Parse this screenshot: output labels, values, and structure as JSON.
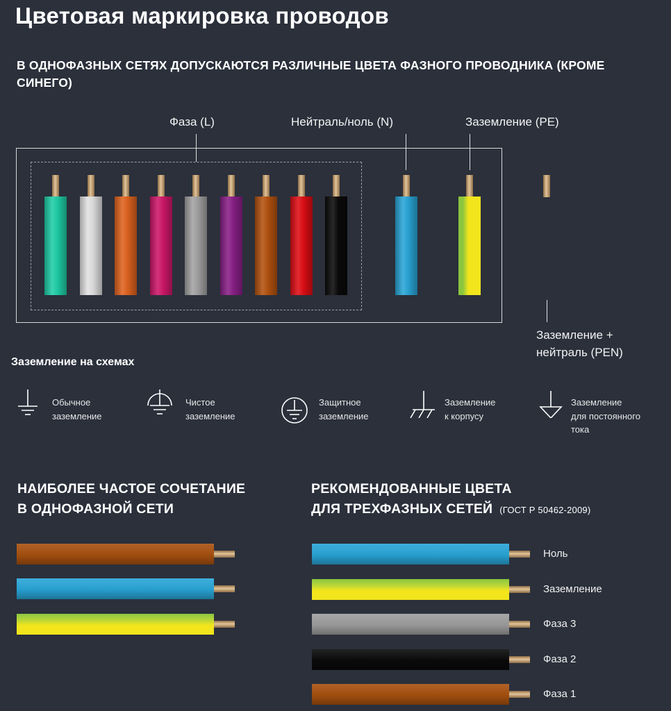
{
  "title": "Цветовая маркировка проводов",
  "subtitle": "В ОДНОФАЗНЫХ СЕТЯХ ДОПУСКАЮТСЯ РАЗЛИЧНЫЕ ЦВЕТА ФАЗНОГО ПРОВОДНИКА (КРОМЕ СИНЕГО)",
  "labels": {
    "phase": "Фаза (L)",
    "neutral": "Нейтраль/ноль (N)",
    "ground": "Заземление (PE)",
    "pen": "Заземление +\nнейтраль (PEN)"
  },
  "phase_wire_colors": [
    "#1fcfa8",
    "#e2e2e2",
    "#e0631f",
    "#d0176a",
    "#a3a3a3",
    "#8a1f88",
    "#b4520f",
    "#e00d15",
    "#0a0a0a"
  ],
  "colors": {
    "neutral": "#29a6d8",
    "ground_green": "#8cc63f",
    "ground_yellow": "#f2e51c",
    "copper": "#d9b88f",
    "background": "#2b303b"
  },
  "grounding": {
    "title": "Заземление на схемах",
    "items": [
      {
        "icon": "ground-icon",
        "label": "Обычное\nзаземление"
      },
      {
        "icon": "clean-ground-icon",
        "label": "Чистое\nзаземление"
      },
      {
        "icon": "protective-ground-icon",
        "label": "Защитное\nзаземление"
      },
      {
        "icon": "chassis-ground-icon",
        "label": "Заземление\nк корпусу"
      },
      {
        "icon": "dc-ground-icon",
        "label": "Заземление\nдля постоянного\nтока"
      }
    ]
  },
  "single_phase": {
    "title_line1": "НАИБОЛЕЕ ЧАСТОЕ СОЧЕТАНИЕ",
    "title_line2": "В ОДНОФАЗНОЙ СЕТИ"
  },
  "three_phase": {
    "title_line1": "РЕКОМЕНДОВАННЫЕ ЦВЕТА",
    "title_line2": "ДЛЯ ТРЕХФАЗНЫХ СЕТЕЙ",
    "standard": "(ГОСТ Р 50462-2009)",
    "wires": [
      {
        "label": "Ноль",
        "color": "#29a6d8"
      },
      {
        "label": "Заземление",
        "color": "ground"
      },
      {
        "label": "Фаза 3",
        "color": "#9e9e9e"
      },
      {
        "label": "Фаза 2",
        "color": "#0a0a0a"
      },
      {
        "label": "Фаза 1",
        "color": "#a8510f"
      }
    ]
  }
}
